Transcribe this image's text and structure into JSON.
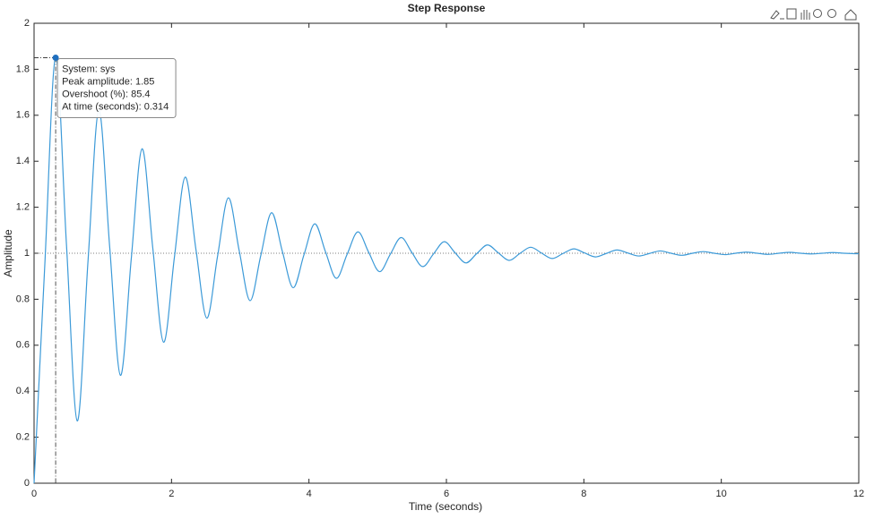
{
  "chart_data": {
    "type": "line",
    "title": "Step Response",
    "x_label": "Time (seconds)",
    "y_label": "Amplitude",
    "x": [
      0,
      0.157,
      0.314,
      0.471,
      0.628,
      0.785,
      0.942,
      1.1,
      1.257,
      1.414,
      1.571,
      1.728,
      1.885,
      2.042,
      2.199,
      2.356,
      2.513,
      2.67,
      2.827,
      2.985,
      3.142,
      3.299,
      3.456,
      3.613,
      3.77,
      3.927,
      4.084,
      4.241,
      4.398,
      4.555,
      4.712,
      4.869,
      5.027,
      5.184,
      5.341,
      5.498,
      5.655,
      5.812,
      5.969,
      6.126,
      6.283,
      6.44,
      6.597,
      6.754,
      6.912,
      7.069,
      7.226,
      7.383,
      7.54,
      7.697,
      7.854,
      8.011,
      8.168,
      8.325,
      8.482,
      8.639,
      8.796,
      8.954,
      9.111,
      9.268,
      9.425,
      9.582,
      9.739,
      9.896,
      10.053,
      10.21,
      10.367,
      10.524,
      10.681,
      10.838,
      10.996,
      11.153,
      11.31,
      11.467,
      11.624,
      11.781,
      11.938,
      12
    ],
    "series": [
      {
        "color": "#3c9ad8",
        "values": [
          0,
          0.954,
          1.854,
          1.04,
          0.271,
          0.966,
          1.622,
          1.029,
          0.469,
          0.975,
          1.454,
          1.021,
          0.613,
          0.982,
          1.331,
          1.015,
          0.718,
          0.987,
          1.241,
          1.011,
          0.794,
          0.99,
          1.176,
          1.008,
          0.85,
          0.993,
          1.128,
          1.006,
          0.891,
          0.995,
          1.093,
          1.004,
          0.92,
          0.996,
          1.068,
          1.003,
          0.942,
          0.997,
          1.05,
          1.002,
          0.958,
          0.998,
          1.036,
          1.002,
          0.969,
          0.999,
          1.026,
          1.001,
          0.977,
          0.999,
          1.019,
          1.001,
          0.984,
          0.999,
          1.014,
          1.001,
          0.988,
          0.999,
          1.01,
          1,
          0.991,
          1,
          1.007,
          1,
          0.994,
          1,
          1.005,
          1,
          0.995,
          1,
          1.004,
          1,
          0.997,
          1,
          1.003,
          1,
          0.998,
          0.998
        ]
      }
    ],
    "steady_state": 1,
    "datatip": {
      "time": 0.314,
      "amplitude": 1.85,
      "lines": [
        "System: sys",
        "Peak amplitude: 1.85",
        "Overshoot (%): 85.4",
        "At time (seconds): 0.314"
      ]
    },
    "xlim": [
      0,
      12
    ],
    "ylim": [
      0,
      2
    ],
    "xticks": [
      0,
      2,
      4,
      6,
      8,
      10,
      12
    ],
    "yticks": [
      0,
      0.2,
      0.4,
      0.6,
      0.8,
      1,
      1.2,
      1.4,
      1.6,
      1.8,
      2
    ],
    "grid": false
  }
}
